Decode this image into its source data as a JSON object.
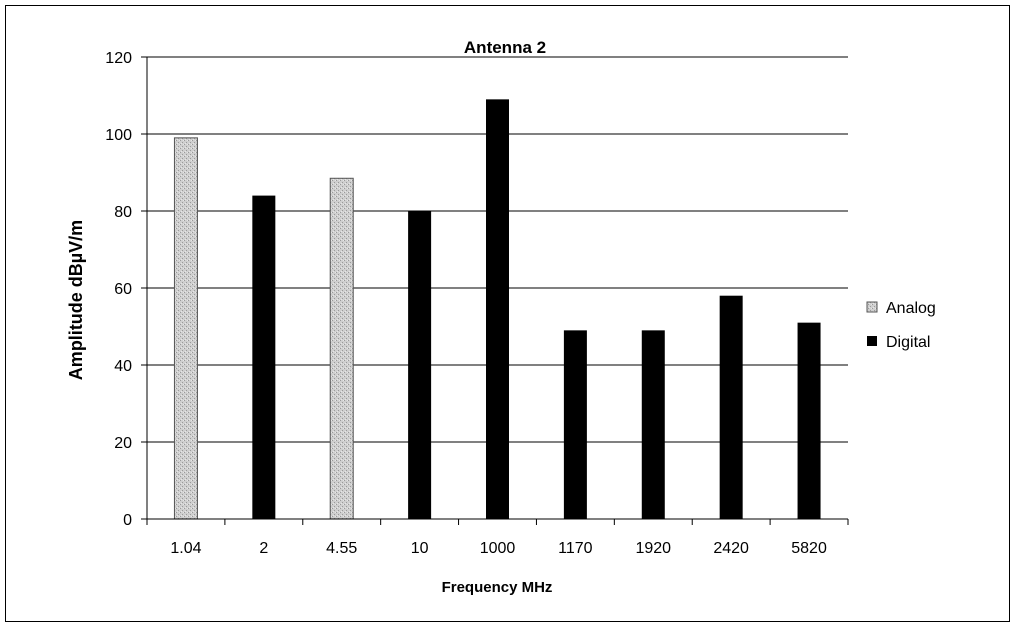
{
  "chart_data": {
    "type": "bar",
    "title": "Antenna 2",
    "xlabel": "Frequency MHz",
    "ylabel": "Amplitude dBµV/m",
    "ylim": [
      0,
      120
    ],
    "yticks": [
      "0",
      "20",
      "40",
      "60",
      "80",
      "100",
      "120"
    ],
    "grid": true,
    "legend_position": "right",
    "categories": [
      "1.04",
      "2",
      "4.55",
      "10",
      "1000",
      "1170",
      "1920",
      "2420",
      "5820"
    ],
    "series": [
      {
        "name": "Analog",
        "color": "#c8c8c8",
        "values": [
          99,
          null,
          88.5,
          null,
          null,
          null,
          null,
          null,
          null
        ]
      },
      {
        "name": "Digital",
        "color": "#000000",
        "values": [
          null,
          84,
          null,
          80,
          109,
          49,
          49,
          58,
          51
        ]
      }
    ]
  }
}
